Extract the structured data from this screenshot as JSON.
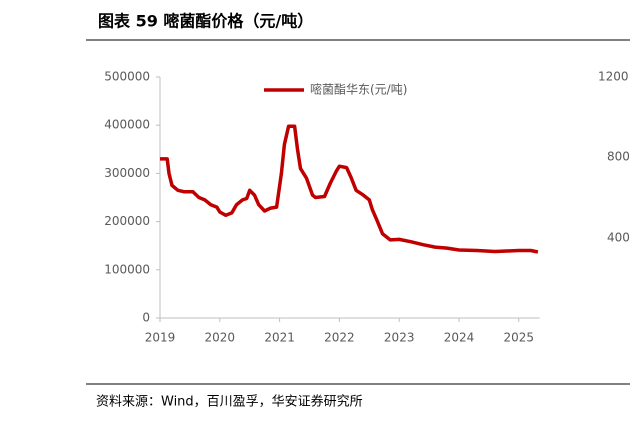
{
  "chart_data": {
    "type": "line",
    "title": "图表 59 嘧菌酯价格（元/吨）",
    "source": "资料来源：Wind，百川盈孚，华安证券研究所",
    "x": [
      2019.0,
      2019.12,
      2019.15,
      2019.2,
      2019.3,
      2019.4,
      2019.55,
      2019.65,
      2019.75,
      2019.85,
      2019.95,
      2020.0,
      2020.1,
      2020.2,
      2020.28,
      2020.38,
      2020.45,
      2020.5,
      2020.58,
      2020.65,
      2020.75,
      2020.85,
      2020.95,
      2021.03,
      2021.08,
      2021.15,
      2021.25,
      2021.3,
      2021.35,
      2021.45,
      2021.55,
      2021.6,
      2021.75,
      2021.85,
      2021.95,
      2022.0,
      2022.12,
      2022.2,
      2022.28,
      2022.4,
      2022.5,
      2022.55,
      2022.62,
      2022.72,
      2022.85,
      2023.0,
      2023.2,
      2023.4,
      2023.6,
      2023.8,
      2024.0,
      2024.3,
      2024.6,
      2024.8,
      2025.0,
      2025.2,
      2025.32
    ],
    "series": [
      {
        "name": "嘧菌酯华东(元/吨)",
        "color": "#c00000",
        "values": [
          330000,
          330000,
          300000,
          275000,
          265000,
          262000,
          262000,
          250000,
          245000,
          235000,
          230000,
          220000,
          213000,
          218000,
          235000,
          245000,
          248000,
          265000,
          255000,
          235000,
          222000,
          228000,
          230000,
          300000,
          360000,
          398000,
          398000,
          350000,
          310000,
          290000,
          255000,
          250000,
          252000,
          280000,
          305000,
          315000,
          312000,
          290000,
          265000,
          255000,
          245000,
          225000,
          205000,
          175000,
          162000,
          163000,
          158000,
          152000,
          147000,
          145000,
          141000,
          140000,
          138000,
          139000,
          140000,
          140000,
          137000
        ]
      }
    ],
    "xlim": [
      2019,
      2025.35
    ],
    "xticks": [
      2019,
      2020,
      2021,
      2022,
      2023,
      2024,
      2025
    ],
    "ylim": [
      0,
      500000
    ],
    "yticks": [
      0,
      100000,
      200000,
      300000,
      400000,
      500000
    ],
    "grid": false,
    "legend": "top",
    "neighbor_fragments": [
      "1200",
      "800",
      "400"
    ]
  }
}
